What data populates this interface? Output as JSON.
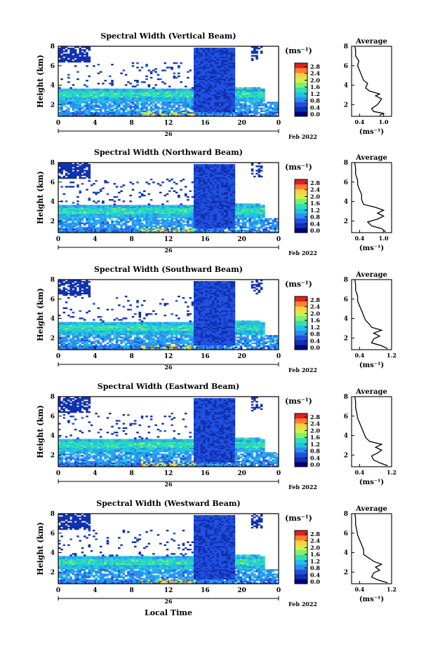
{
  "figure": {
    "common_xlabel": "Local Time",
    "date_label": "26",
    "month_label": "Feb 2022",
    "colorbar_unit": "(ms⁻¹)",
    "avg_title": "Average",
    "avg_xlabel": "(ms⁻¹)",
    "colorbar_ticks": [
      "0.0",
      "0.4",
      "0.8",
      "1.2",
      "1.6",
      "2.0",
      "2.4",
      "2.8"
    ],
    "colormap": [
      "#000080",
      "#1030b0",
      "#2050e0",
      "#2f8cf0",
      "#20c0e8",
      "#30e0b0",
      "#80f070",
      "#d0f050",
      "#ffd040",
      "#ff8030",
      "#e02020"
    ]
  },
  "chart_data": [
    {
      "type": "heatmap",
      "title": "Spectral Width (Vertical Beam)",
      "ylabel": "Height (km)",
      "xlim": [
        0,
        24
      ],
      "ylim": [
        0.8,
        8
      ],
      "x_ticks": [
        "0",
        "4",
        "8",
        "12",
        "16",
        "20",
        "0"
      ],
      "y_ticks": [
        "2",
        "4",
        "6",
        "8"
      ],
      "value_range": [
        0.0,
        3.0
      ],
      "average": {
        "xlim": [
          0.2,
          1.2
        ],
        "x_ticks": [
          "0.4",
          "1.0"
        ],
        "y_ticks": [
          "2",
          "4",
          "6",
          "8"
        ],
        "profile": [
          [
            0.9,
            0.9
          ],
          [
            1.0,
            1.1
          ],
          [
            0.75,
            1.3
          ],
          [
            0.7,
            1.6
          ],
          [
            0.85,
            2.0
          ],
          [
            0.9,
            2.3
          ],
          [
            0.95,
            2.6
          ],
          [
            0.8,
            2.9
          ],
          [
            0.9,
            3.1
          ],
          [
            0.65,
            3.4
          ],
          [
            0.55,
            3.7
          ],
          [
            0.6,
            4.2
          ],
          [
            0.5,
            4.5
          ],
          [
            0.45,
            5.0
          ],
          [
            0.4,
            5.5
          ],
          [
            0.35,
            6.0
          ],
          [
            0.38,
            6.5
          ],
          [
            0.3,
            7.0
          ],
          [
            0.3,
            7.6
          ],
          [
            0.28,
            8.0
          ]
        ]
      }
    },
    {
      "type": "heatmap",
      "title": "Spectral Width (Northward Beam)",
      "ylabel": "Height (km)",
      "xlim": [
        0,
        24
      ],
      "ylim": [
        0.8,
        8
      ],
      "x_ticks": [
        "0",
        "4",
        "8",
        "12",
        "16",
        "20",
        "0"
      ],
      "y_ticks": [
        "2",
        "4",
        "6",
        "8"
      ],
      "value_range": [
        0.0,
        3.0
      ],
      "average": {
        "xlim": [
          0.2,
          1.2
        ],
        "x_ticks": [
          "0.4",
          "1.0"
        ],
        "y_ticks": [
          "2",
          "4",
          "6",
          "8"
        ],
        "profile": [
          [
            1.05,
            0.9
          ],
          [
            0.95,
            1.2
          ],
          [
            0.7,
            1.5
          ],
          [
            0.6,
            1.9
          ],
          [
            0.85,
            2.2
          ],
          [
            1.0,
            2.5
          ],
          [
            0.85,
            2.8
          ],
          [
            1.0,
            3.1
          ],
          [
            0.8,
            3.4
          ],
          [
            0.5,
            3.7
          ],
          [
            0.45,
            4.2
          ],
          [
            0.45,
            4.7
          ],
          [
            0.4,
            5.2
          ],
          [
            0.35,
            5.7
          ],
          [
            0.35,
            6.2
          ],
          [
            0.3,
            6.8
          ],
          [
            0.3,
            7.4
          ],
          [
            0.28,
            8.0
          ]
        ]
      }
    },
    {
      "type": "heatmap",
      "title": "Spectral Width (Southward Beam)",
      "ylabel": "Height (km)",
      "xlim": [
        0,
        24
      ],
      "ylim": [
        0.8,
        8
      ],
      "x_ticks": [
        "0",
        "4",
        "8",
        "12",
        "16",
        "20",
        "0"
      ],
      "y_ticks": [
        "2",
        "4",
        "6",
        "8"
      ],
      "value_range": [
        0.0,
        3.0
      ],
      "average": {
        "xlim": [
          0.2,
          1.2
        ],
        "x_ticks": [
          "0.4",
          "1.2"
        ],
        "y_ticks": [
          "2",
          "4",
          "6",
          "8"
        ],
        "profile": [
          [
            1.1,
            0.9
          ],
          [
            0.95,
            1.2
          ],
          [
            0.7,
            1.5
          ],
          [
            0.75,
            1.9
          ],
          [
            0.9,
            2.2
          ],
          [
            0.75,
            2.5
          ],
          [
            0.95,
            2.8
          ],
          [
            0.7,
            3.1
          ],
          [
            0.65,
            3.4
          ],
          [
            0.55,
            3.8
          ],
          [
            0.5,
            4.3
          ],
          [
            0.45,
            4.8
          ],
          [
            0.4,
            5.3
          ],
          [
            0.35,
            5.8
          ],
          [
            0.35,
            6.3
          ],
          [
            0.3,
            6.9
          ],
          [
            0.3,
            7.5
          ],
          [
            0.28,
            8.0
          ]
        ]
      }
    },
    {
      "type": "heatmap",
      "title": "Spectral Width (Eastward Beam)",
      "ylabel": "Height (km)",
      "xlim": [
        0,
        24
      ],
      "ylim": [
        0.8,
        8
      ],
      "x_ticks": [
        "0",
        "4",
        "8",
        "12",
        "16",
        "20",
        "0"
      ],
      "y_ticks": [
        "2",
        "4",
        "6",
        "8"
      ],
      "value_range": [
        0.0,
        3.0
      ],
      "average": {
        "xlim": [
          0.2,
          1.2
        ],
        "x_ticks": [
          "0.4",
          "1.2"
        ],
        "y_ticks": [
          "2",
          "4",
          "6",
          "8"
        ],
        "profile": [
          [
            1.1,
            0.9
          ],
          [
            0.9,
            1.2
          ],
          [
            0.75,
            1.5
          ],
          [
            0.7,
            1.9
          ],
          [
            0.85,
            2.2
          ],
          [
            0.95,
            2.5
          ],
          [
            0.8,
            2.8
          ],
          [
            0.95,
            3.1
          ],
          [
            0.65,
            3.4
          ],
          [
            0.55,
            3.8
          ],
          [
            0.5,
            4.3
          ],
          [
            0.45,
            4.8
          ],
          [
            0.4,
            5.3
          ],
          [
            0.35,
            5.8
          ],
          [
            0.33,
            6.3
          ],
          [
            0.3,
            6.9
          ],
          [
            0.3,
            7.5
          ],
          [
            0.28,
            8.0
          ]
        ]
      }
    },
    {
      "type": "heatmap",
      "title": "Spectral Width (Westward Beam)",
      "ylabel": "Height (km)",
      "xlim": [
        0,
        24
      ],
      "ylim": [
        0.8,
        8
      ],
      "x_ticks": [
        "0",
        "4",
        "8",
        "12",
        "16",
        "20",
        "0"
      ],
      "y_ticks": [
        "2",
        "4",
        "6",
        "8"
      ],
      "value_range": [
        0.0,
        3.0
      ],
      "average": {
        "xlim": [
          0.2,
          1.2
        ],
        "x_ticks": [
          "0.4",
          "1.2"
        ],
        "y_ticks": [
          "2",
          "4",
          "6",
          "8"
        ],
        "profile": [
          [
            1.1,
            0.9
          ],
          [
            0.85,
            1.2
          ],
          [
            0.7,
            1.5
          ],
          [
            0.75,
            1.9
          ],
          [
            0.9,
            2.2
          ],
          [
            0.8,
            2.5
          ],
          [
            0.95,
            2.8
          ],
          [
            0.75,
            3.1
          ],
          [
            0.65,
            3.4
          ],
          [
            0.5,
            3.8
          ],
          [
            0.5,
            4.3
          ],
          [
            0.45,
            4.8
          ],
          [
            0.4,
            5.3
          ],
          [
            0.35,
            5.8
          ],
          [
            0.33,
            6.3
          ],
          [
            0.3,
            6.9
          ],
          [
            0.3,
            7.5
          ],
          [
            0.28,
            8.0
          ]
        ]
      }
    }
  ]
}
